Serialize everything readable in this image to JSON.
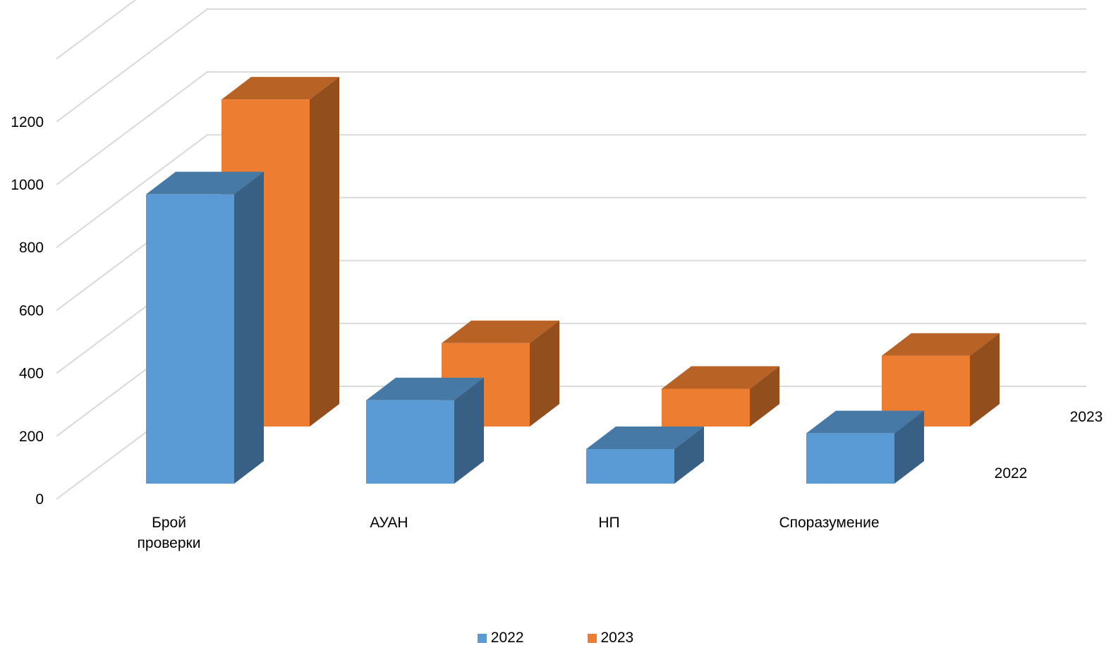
{
  "chart_data": {
    "type": "bar",
    "style": "3d-clustered-depth",
    "categories": [
      "Брой\nпроверки",
      "АУАН",
      "НП",
      "Споразумение"
    ],
    "series": [
      {
        "name": "2022",
        "values": [
          920,
          265,
          110,
          160
        ],
        "color": "#5b9bd5"
      },
      {
        "name": "2023",
        "values": [
          1040,
          265,
          120,
          225
        ],
        "color": "#ed7d31"
      }
    ],
    "yticks": [
      0,
      200,
      400,
      600,
      800,
      1000,
      1200
    ],
    "ylim": [
      0,
      1500
    ],
    "grid": true,
    "depth_labels": [
      "2022",
      "2023"
    ],
    "legend_position": "bottom",
    "title": "",
    "xlabel": "",
    "ylabel": ""
  }
}
